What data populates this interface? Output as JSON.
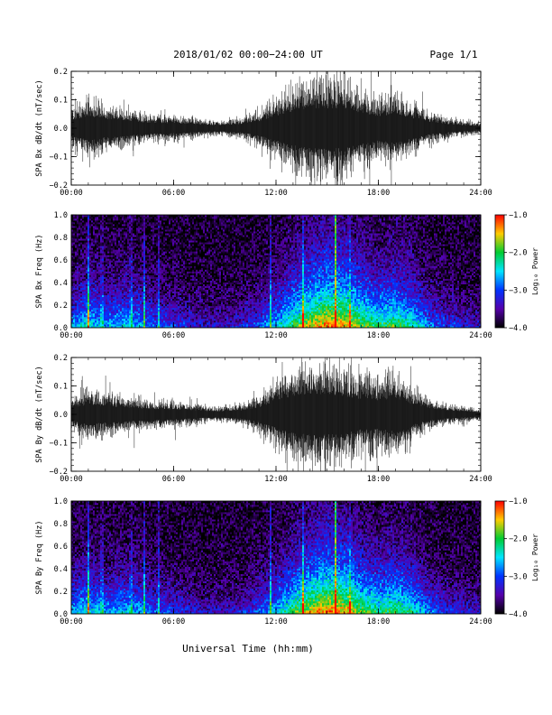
{
  "header": {
    "title": "2018/01/02  00:00−24:00 UT",
    "page": "Page 1/1"
  },
  "xlabel": "Universal Time (hh:mm)",
  "colorbar": {
    "label": "Log₁₀ Power",
    "ticks": [
      "−1.0",
      "−2.0",
      "−3.0",
      "−4.0"
    ],
    "colors": [
      "#ff0000",
      "#ffcc00",
      "#00cc33",
      "#00e5ff",
      "#0033ff",
      "#5500aa",
      "#000000"
    ]
  },
  "x_ticks": [
    "00:00",
    "06:00",
    "12:00",
    "18:00",
    "24:00"
  ],
  "chart_data": [
    {
      "type": "line",
      "ylabel": "SPA Bx dB/dt (nT/sec)",
      "x_range": [
        0,
        24
      ],
      "x_unit": "hours UT",
      "ylim": [
        -0.2,
        0.2
      ],
      "y_ticks": [
        "0.2",
        "0.1",
        "0.0",
        "−0.1",
        "−0.2"
      ],
      "envelope_hours": [
        0,
        1,
        2,
        3,
        4,
        5,
        6,
        7,
        8,
        9,
        10,
        11,
        12,
        13,
        14,
        15,
        16,
        17,
        18,
        19,
        20,
        21,
        22,
        23,
        24
      ],
      "envelope_amplitude": [
        0.07,
        0.12,
        0.09,
        0.08,
        0.06,
        0.05,
        0.05,
        0.04,
        0.03,
        0.03,
        0.04,
        0.07,
        0.12,
        0.17,
        0.2,
        0.2,
        0.2,
        0.15,
        0.12,
        0.14,
        0.1,
        0.06,
        0.04,
        0.03,
        0.02
      ]
    },
    {
      "type": "heatmap",
      "ylabel": "SPA Bx Freq (Hz)",
      "x_range": [
        0,
        24
      ],
      "ylim": [
        0.0,
        1.0
      ],
      "y_ticks": [
        "1.0",
        "0.8",
        "0.6",
        "0.4",
        "0.2",
        "0.0"
      ],
      "color_range": [
        -4.0,
        -1.0
      ],
      "activity_hours": [
        0,
        1,
        2,
        3,
        4,
        5,
        6,
        7,
        8,
        9,
        10,
        11,
        12,
        13,
        14,
        15,
        16,
        17,
        18,
        19,
        20,
        21,
        22,
        23,
        24
      ],
      "activity_level": [
        0.45,
        0.55,
        0.45,
        0.5,
        0.45,
        0.35,
        0.3,
        0.25,
        0.2,
        0.2,
        0.25,
        0.35,
        0.5,
        0.7,
        0.85,
        0.95,
        0.9,
        0.75,
        0.65,
        0.7,
        0.6,
        0.4,
        0.3,
        0.25,
        0.2
      ],
      "pulsation_hours": [
        1.0,
        1.8,
        3.5,
        4.3,
        5.1,
        11.7,
        13.6,
        15.5,
        16.3
      ]
    },
    {
      "type": "line",
      "ylabel": "SPA By dB/dt (nT/sec)",
      "x_range": [
        0,
        24
      ],
      "x_unit": "hours UT",
      "ylim": [
        -0.2,
        0.2
      ],
      "y_ticks": [
        "0.2",
        "0.1",
        "0.0",
        "−0.1",
        "−0.2"
      ],
      "envelope_hours": [
        0,
        1,
        2,
        3,
        4,
        5,
        6,
        7,
        8,
        9,
        10,
        11,
        12,
        13,
        14,
        15,
        16,
        17,
        18,
        19,
        20,
        21,
        22,
        23,
        24
      ],
      "envelope_amplitude": [
        0.06,
        0.1,
        0.08,
        0.07,
        0.06,
        0.05,
        0.05,
        0.04,
        0.03,
        0.03,
        0.04,
        0.07,
        0.13,
        0.18,
        0.2,
        0.2,
        0.18,
        0.15,
        0.14,
        0.16,
        0.1,
        0.06,
        0.04,
        0.03,
        0.02
      ]
    },
    {
      "type": "heatmap",
      "ylabel": "SPA By Freq (Hz)",
      "x_range": [
        0,
        24
      ],
      "ylim": [
        0.0,
        1.0
      ],
      "y_ticks": [
        "1.0",
        "0.8",
        "0.6",
        "0.4",
        "0.2",
        "0.0"
      ],
      "color_range": [
        -4.0,
        -1.0
      ],
      "activity_hours": [
        0,
        1,
        2,
        3,
        4,
        5,
        6,
        7,
        8,
        9,
        10,
        11,
        12,
        13,
        14,
        15,
        16,
        17,
        18,
        19,
        20,
        21,
        22,
        23,
        24
      ],
      "activity_level": [
        0.45,
        0.55,
        0.45,
        0.5,
        0.45,
        0.35,
        0.3,
        0.25,
        0.2,
        0.2,
        0.25,
        0.35,
        0.5,
        0.7,
        0.85,
        0.95,
        0.9,
        0.75,
        0.65,
        0.7,
        0.6,
        0.4,
        0.3,
        0.25,
        0.2
      ],
      "pulsation_hours": [
        1.0,
        1.8,
        3.5,
        4.3,
        5.1,
        11.7,
        13.6,
        15.5,
        16.3
      ]
    }
  ]
}
